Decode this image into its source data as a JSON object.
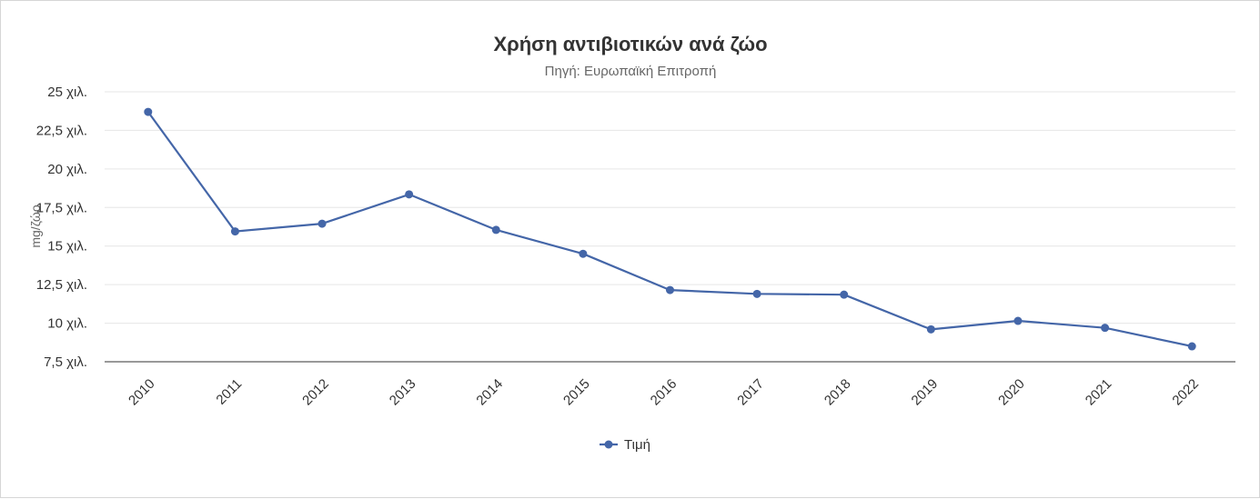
{
  "chart_data": {
    "type": "line",
    "title": "Χρήση αντιβιοτικών ανά ζώο",
    "subtitle": "Πηγή: Ευρωπαϊκή Επιτροπή",
    "ylabel": "mg/ζώο",
    "xlabel": "",
    "categories": [
      "2010",
      "2011",
      "2012",
      "2013",
      "2014",
      "2015",
      "2016",
      "2017",
      "2018",
      "2019",
      "2020",
      "2021",
      "2022"
    ],
    "series": [
      {
        "name": "Τιμή",
        "color": "#4466a8",
        "values": [
          23700,
          15950,
          16450,
          18350,
          16050,
          14500,
          12150,
          11900,
          11850,
          9600,
          10150,
          9700,
          8500
        ]
      }
    ],
    "ylim": [
      7500,
      25000
    ],
    "yticks": [
      7500,
      10000,
      12500,
      15000,
      17500,
      20000,
      22500,
      25000
    ],
    "ytick_labels": [
      "7,5 χιλ.",
      "10 χιλ.",
      "12,5 χιλ.",
      "15 χιλ.",
      "17,5 χιλ.",
      "20 χιλ.",
      "22,5 χιλ.",
      "25 χιλ."
    ],
    "grid": true,
    "legend": "bottom-center"
  }
}
